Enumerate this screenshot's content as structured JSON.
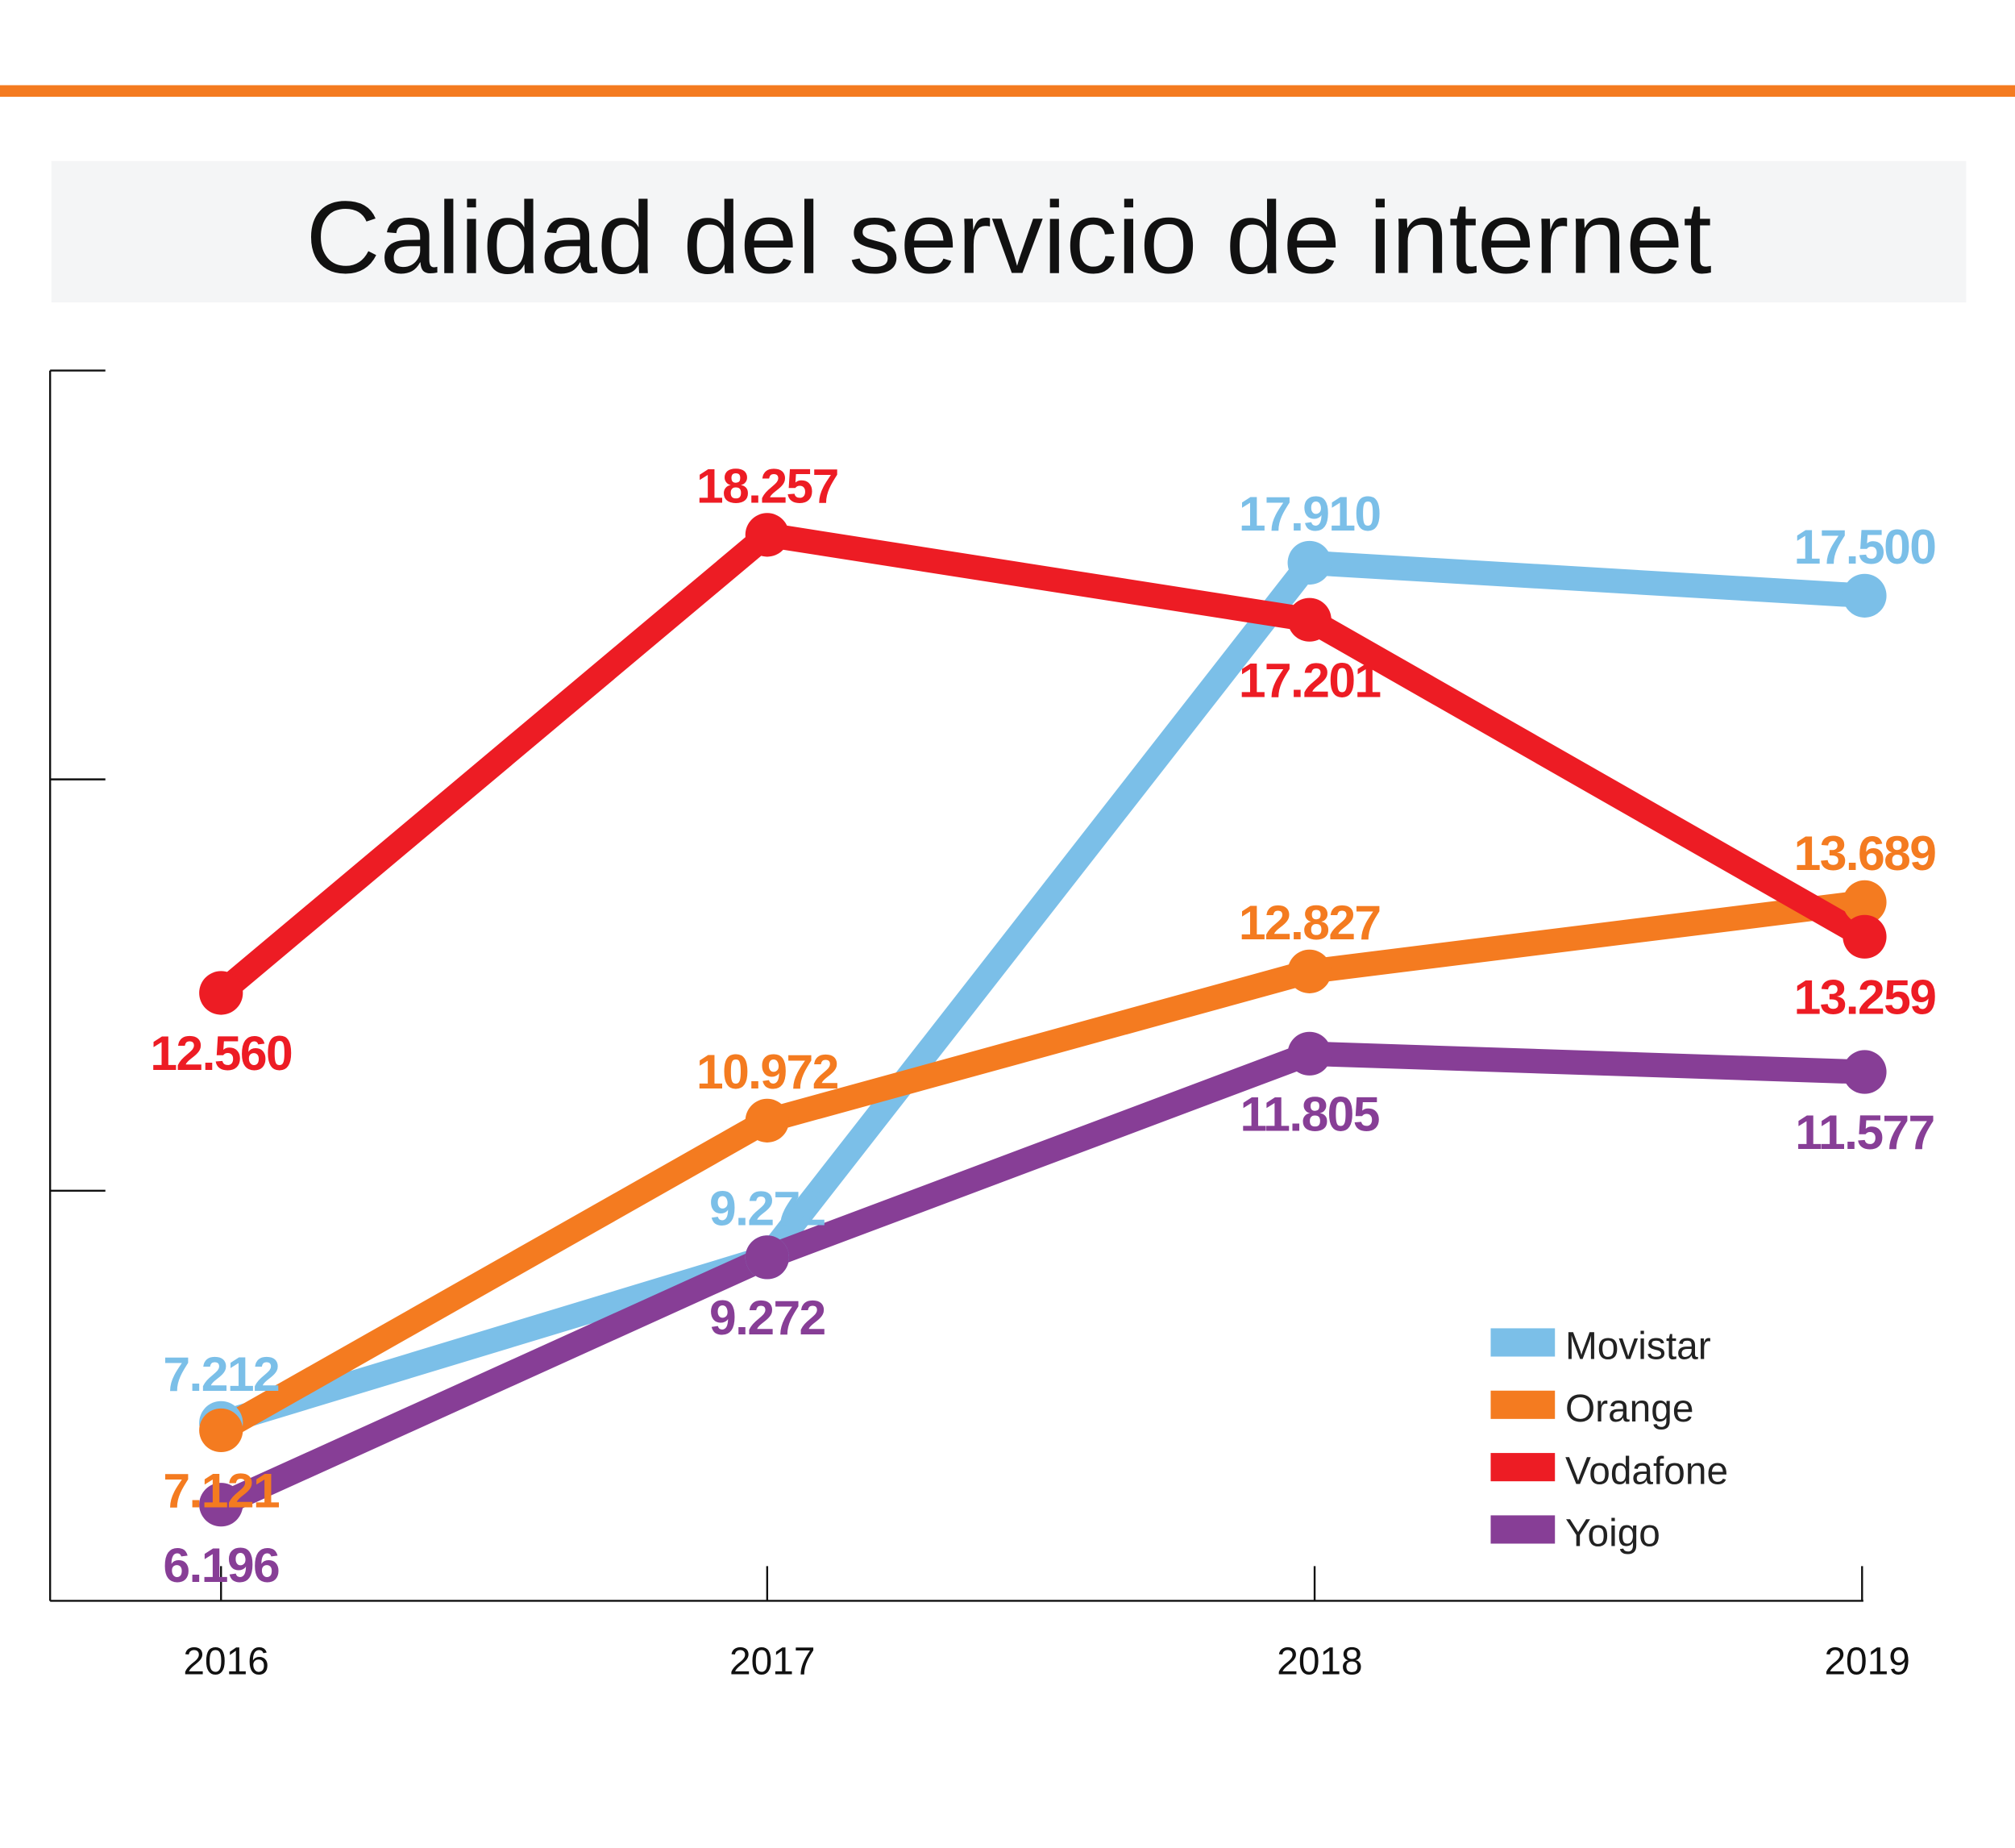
{
  "title": "Calidad del servicio de internet",
  "colors": {
    "accent_bar": "#f47b20",
    "title_band": "#f4f5f6"
  },
  "chart_data": {
    "type": "line",
    "title": "Calidad del servicio de internet",
    "xlabel": "",
    "ylabel": "",
    "x": [
      "2016",
      "2017",
      "2018",
      "2019"
    ],
    "ylim": [
      5,
      20.3
    ],
    "grid": false,
    "legend": "bottom-right",
    "series": [
      {
        "name": "Movistar",
        "color": "#7bbfe8",
        "values": [
          7.212,
          9.272,
          17.91,
          17.5
        ],
        "labels": [
          "7.212",
          "9.272",
          "17.910",
          "17.500"
        ]
      },
      {
        "name": "Orange",
        "color": "#f47b20",
        "values": [
          7.121,
          10.972,
          12.827,
          13.689
        ],
        "labels": [
          "7.121",
          "10.972",
          "12.827",
          "13.689"
        ]
      },
      {
        "name": "Vodafone",
        "color": "#ed1c24",
        "values": [
          12.56,
          18.257,
          17.201,
          13.259
        ],
        "labels": [
          "12.560",
          "18.257",
          "17.201",
          "13.259"
        ]
      },
      {
        "name": "Yoigo",
        "color": "#873e96",
        "values": [
          6.196,
          9.272,
          11.805,
          11.577
        ],
        "labels": [
          "6.196",
          "9.272",
          "11.805",
          "11.577"
        ]
      }
    ]
  }
}
